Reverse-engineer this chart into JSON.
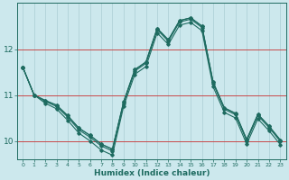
{
  "xlabel": "Humidex (Indice chaleur)",
  "bg_color": "#cce8ed",
  "grid_color": "#aacdd4",
  "line_color": "#1e6b60",
  "red_line_color": "#cc3333",
  "line1": [
    11.6,
    11.0,
    10.88,
    10.78,
    10.55,
    10.28,
    10.12,
    9.93,
    9.82,
    10.85,
    11.55,
    11.72,
    12.45,
    12.2,
    12.62,
    12.68,
    12.5,
    11.28,
    10.72,
    10.6,
    10.03,
    10.58,
    10.32,
    10.02
  ],
  "line2": [
    11.6,
    11.0,
    10.88,
    10.78,
    10.55,
    10.28,
    10.12,
    9.93,
    9.82,
    10.85,
    11.55,
    11.72,
    12.45,
    12.2,
    12.62,
    12.68,
    12.5,
    11.28,
    10.72,
    10.6,
    10.03,
    10.58,
    10.32,
    10.02
  ],
  "line3": [
    11.6,
    11.0,
    10.86,
    10.75,
    10.52,
    10.24,
    10.08,
    9.89,
    9.78,
    10.82,
    11.52,
    11.69,
    12.42,
    12.17,
    12.59,
    12.65,
    12.47,
    11.25,
    10.69,
    10.57,
    10.0,
    10.55,
    10.29,
    9.99
  ],
  "line4": [
    11.6,
    11.0,
    10.82,
    10.7,
    10.45,
    10.17,
    10.0,
    9.8,
    9.69,
    10.75,
    11.45,
    11.62,
    12.35,
    12.1,
    12.52,
    12.58,
    12.4,
    11.18,
    10.62,
    10.5,
    9.93,
    10.48,
    10.22,
    9.92
  ],
  "x_values": [
    0,
    1,
    2,
    3,
    4,
    5,
    6,
    7,
    8,
    9,
    10,
    11,
    12,
    13,
    14,
    15,
    16,
    17,
    18,
    19,
    20,
    21,
    22,
    23
  ],
  "xlim": [
    -0.5,
    23.5
  ],
  "ylim": [
    9.6,
    13.0
  ],
  "yticks": [
    10,
    11,
    12
  ],
  "xticks": [
    0,
    1,
    2,
    3,
    4,
    5,
    6,
    7,
    8,
    9,
    10,
    11,
    12,
    13,
    14,
    15,
    16,
    17,
    18,
    19,
    20,
    21,
    22,
    23
  ],
  "red_hlines": [
    10,
    11,
    12
  ]
}
